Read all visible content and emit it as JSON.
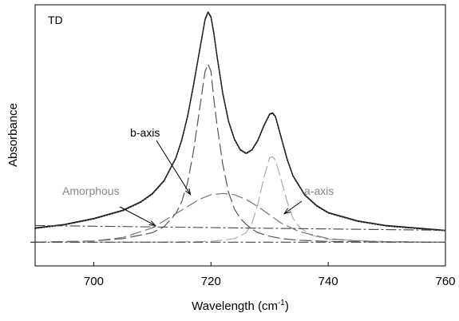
{
  "chart_data": {
    "type": "line",
    "title": "",
    "panel_label": "TD",
    "xlabel": "Wavelength",
    "xlabel_unit": "(cm",
    "xlabel_exp": "-1",
    "xlabel_close": ")",
    "ylabel": "Absorbance",
    "xlim": [
      690,
      760
    ],
    "ylim": [
      -0.1,
      1.0
    ],
    "xticks": [
      700,
      720,
      740,
      760
    ],
    "grid": false,
    "colors": {
      "measured": "#111111",
      "fit": "#222222",
      "b_axis": "#555555",
      "a_axis": "#aaaaaa",
      "amorphous": "#777777",
      "baseline": "#444444",
      "label_gray": "#888888"
    },
    "annotations": [
      {
        "text": "b-axis",
        "target_x": 716.5,
        "target_y": 0.2
      },
      {
        "text": "Amorphous",
        "target_x": 710.5,
        "target_y": 0.07
      },
      {
        "text": "a-axis",
        "target_x": 732.5,
        "target_y": 0.12
      }
    ],
    "series": [
      {
        "style": "solid",
        "color_key": "measured",
        "x": [
          690,
          695,
          700,
          705,
          708,
          710,
          712,
          714,
          715,
          716,
          717,
          718,
          719,
          719.5,
          720,
          720.5,
          721,
          722,
          723,
          724,
          725,
          726,
          727,
          728,
          729,
          730,
          730.5,
          731,
          732,
          733,
          734,
          736,
          738,
          740,
          745,
          750,
          755,
          760
        ],
        "y": [
          0.06,
          0.075,
          0.1,
          0.135,
          0.17,
          0.205,
          0.26,
          0.355,
          0.43,
          0.53,
          0.66,
          0.8,
          0.94,
          0.97,
          0.95,
          0.88,
          0.79,
          0.63,
          0.51,
          0.435,
          0.39,
          0.375,
          0.39,
          0.43,
          0.49,
          0.54,
          0.545,
          0.53,
          0.44,
          0.35,
          0.28,
          0.2,
          0.155,
          0.125,
          0.09,
          0.07,
          0.06,
          0.05
        ]
      },
      {
        "style": "dotted",
        "color_key": "fit",
        "x": [
          690,
          695,
          700,
          705,
          708,
          710,
          712,
          714,
          715,
          716,
          717,
          718,
          719,
          719.5,
          720,
          720.5,
          721,
          722,
          723,
          724,
          725,
          726,
          727,
          728,
          729,
          730,
          730.5,
          731,
          732,
          733,
          734,
          736,
          738,
          740,
          745,
          750,
          755,
          760
        ],
        "y": [
          0.058,
          0.073,
          0.098,
          0.133,
          0.168,
          0.203,
          0.258,
          0.353,
          0.428,
          0.528,
          0.658,
          0.798,
          0.938,
          0.968,
          0.948,
          0.878,
          0.788,
          0.628,
          0.508,
          0.433,
          0.388,
          0.373,
          0.388,
          0.428,
          0.488,
          0.538,
          0.543,
          0.528,
          0.438,
          0.348,
          0.278,
          0.198,
          0.153,
          0.123,
          0.088,
          0.068,
          0.058,
          0.048
        ]
      },
      {
        "style": "longdash",
        "color_key": "b_axis",
        "x": [
          690,
          700,
          705,
          710,
          712,
          714,
          715,
          716,
          717,
          718,
          719,
          719.5,
          720,
          720.5,
          721,
          722,
          723,
          724,
          725,
          726,
          727,
          728,
          730,
          732,
          735,
          740,
          750,
          760
        ],
        "y": [
          0.0,
          0.005,
          0.015,
          0.04,
          0.065,
          0.12,
          0.17,
          0.25,
          0.38,
          0.55,
          0.72,
          0.75,
          0.72,
          0.6,
          0.5,
          0.33,
          0.21,
          0.14,
          0.1,
          0.075,
          0.055,
          0.04,
          0.025,
          0.015,
          0.008,
          0.003,
          0.001,
          0.0
        ]
      },
      {
        "style": "longdash",
        "color_key": "a_axis",
        "x": [
          690,
          710,
          720,
          724,
          726,
          727,
          728,
          729,
          730,
          730.5,
          731,
          732,
          733,
          734,
          735,
          737,
          740,
          750,
          760
        ],
        "y": [
          0.0,
          0.0,
          0.003,
          0.015,
          0.04,
          0.08,
          0.16,
          0.27,
          0.355,
          0.36,
          0.345,
          0.26,
          0.17,
          0.1,
          0.065,
          0.03,
          0.012,
          0.002,
          0.0
        ]
      },
      {
        "style": "longdash",
        "color_key": "amorphous",
        "x": [
          690,
          700,
          705,
          710,
          714,
          718,
          720,
          722,
          724,
          726,
          728,
          730,
          732,
          735,
          740,
          745,
          750,
          760
        ],
        "y": [
          0.0,
          0.005,
          0.02,
          0.06,
          0.12,
          0.18,
          0.2,
          0.205,
          0.2,
          0.18,
          0.15,
          0.115,
          0.08,
          0.045,
          0.015,
          0.005,
          0.002,
          0.0
        ]
      },
      {
        "style": "dashdot",
        "color_key": "baseline",
        "x": [
          690,
          760
        ],
        "y": [
          0.07,
          0.05
        ]
      },
      {
        "style": "dashdot",
        "color_key": "baseline",
        "x": [
          690,
          760
        ],
        "y": [
          0.0,
          0.0
        ]
      }
    ]
  }
}
